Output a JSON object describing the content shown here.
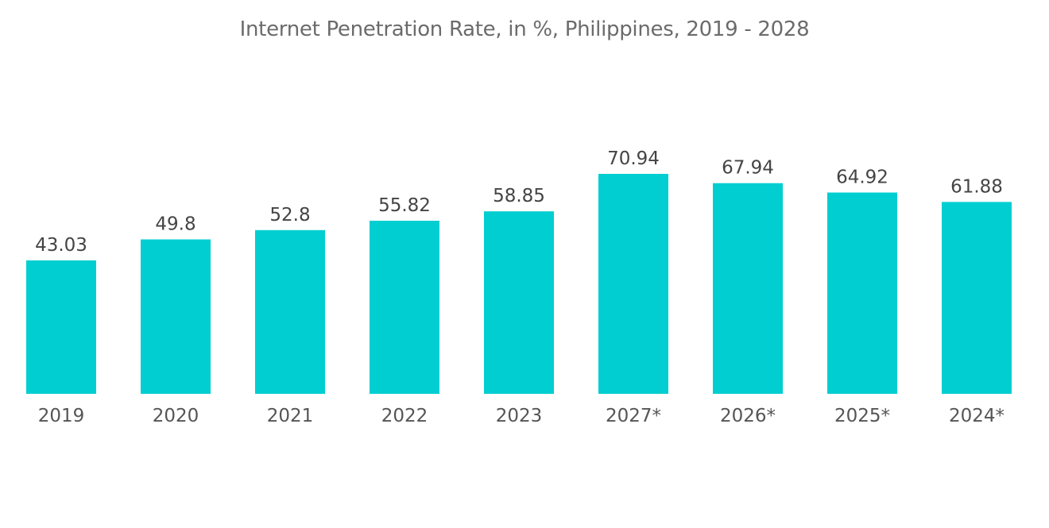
{
  "chart_data": {
    "type": "bar",
    "title": "Internet Penetration Rate, in %, Philippines, 2019 - 2028",
    "categories": [
      "2019",
      "2020",
      "2021",
      "2022",
      "2023",
      "2027*",
      "2026*",
      "2025*",
      "2024*"
    ],
    "values": [
      43.03,
      49.8,
      52.8,
      55.82,
      58.85,
      70.94,
      67.94,
      64.92,
      61.88
    ],
    "value_labels": [
      "43.03",
      "49.8",
      "52.8",
      "55.82",
      "58.85",
      "70.94",
      "67.94",
      "64.92",
      "61.88"
    ],
    "xlabel": "",
    "ylabel": "",
    "grid": false,
    "colors": {
      "bar": "#00CED1",
      "text": "#555555"
    }
  }
}
